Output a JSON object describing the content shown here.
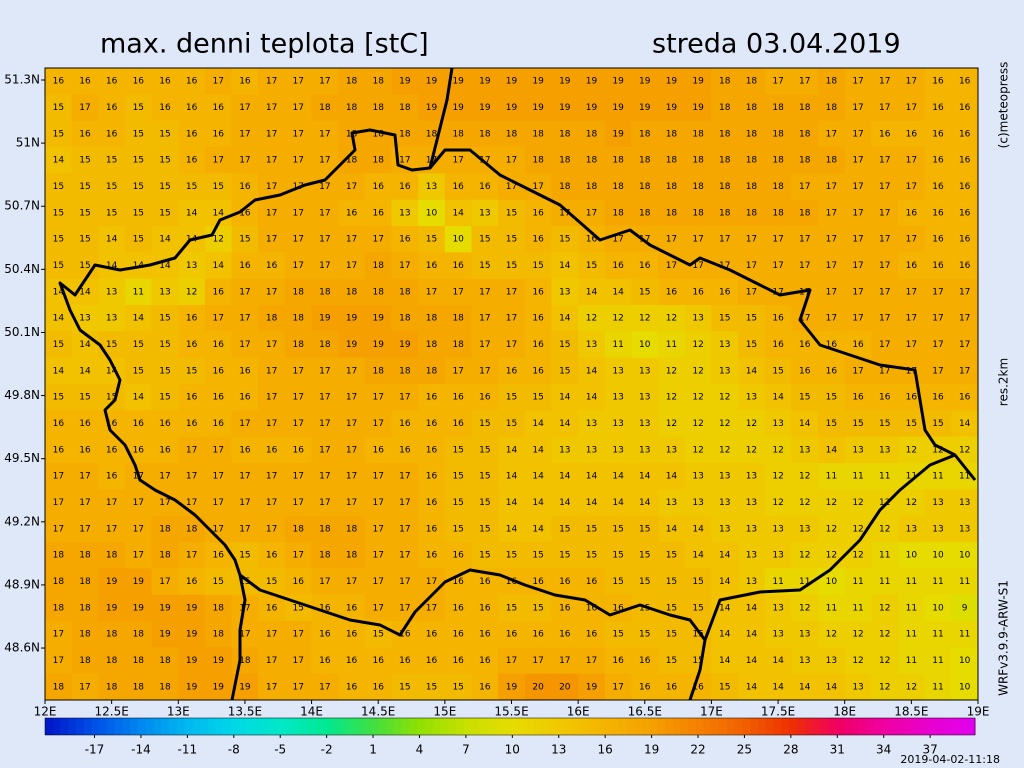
{
  "header": {
    "title": "max. denni teplota [stC]",
    "date": "streda 03.04.2019"
  },
  "chart_data": {
    "type": "grid-map",
    "xlim": [
      12,
      19
    ],
    "ylim": [
      48.353,
      51.357
    ],
    "xticks": [
      {
        "value": 12,
        "label": "12E"
      },
      {
        "value": 12.5,
        "label": "12.5E"
      },
      {
        "value": 13,
        "label": "13E"
      },
      {
        "value": 13.5,
        "label": "13.5E"
      },
      {
        "value": 14,
        "label": "14E"
      },
      {
        "value": 14.5,
        "label": "14.5E"
      },
      {
        "value": 15,
        "label": "15E"
      },
      {
        "value": 15.5,
        "label": "15.5E"
      },
      {
        "value": 16,
        "label": "16E"
      },
      {
        "value": 16.5,
        "label": "16.5E"
      },
      {
        "value": 17,
        "label": "17E"
      },
      {
        "value": 17.5,
        "label": "17.5E"
      },
      {
        "value": 18,
        "label": "18E"
      },
      {
        "value": 18.5,
        "label": "18.5E"
      },
      {
        "value": 19,
        "label": "19E"
      }
    ],
    "yticks": [
      {
        "value": 51.3,
        "label": "51.3N"
      },
      {
        "value": 51,
        "label": "51N"
      },
      {
        "value": 50.7,
        "label": "50.7N"
      },
      {
        "value": 50.4,
        "label": "50.4N"
      },
      {
        "value": 50.1,
        "label": "50.1N"
      },
      {
        "value": 49.8,
        "label": "49.8N"
      },
      {
        "value": 49.5,
        "label": "49.5N"
      },
      {
        "value": 49.2,
        "label": "49.2N"
      },
      {
        "value": 48.9,
        "label": "48.9N"
      },
      {
        "value": 48.6,
        "label": "48.6N"
      }
    ],
    "values": [
      [
        16,
        16,
        16,
        16,
        16,
        16,
        17,
        16,
        17,
        17,
        17,
        18,
        18,
        19,
        19,
        19,
        19,
        19,
        19,
        19,
        19,
        19,
        19,
        19,
        19,
        18,
        18,
        17,
        17,
        18,
        17,
        17,
        17,
        16,
        16
      ],
      [
        15,
        17,
        16,
        15,
        16,
        16,
        16,
        17,
        17,
        17,
        18,
        18,
        18,
        18,
        19,
        19,
        19,
        19,
        19,
        19,
        19,
        19,
        19,
        19,
        19,
        18,
        18,
        18,
        18,
        18,
        17,
        17,
        17,
        16,
        16
      ],
      [
        15,
        16,
        16,
        15,
        15,
        16,
        16,
        17,
        17,
        17,
        17,
        18,
        18,
        18,
        18,
        18,
        18,
        18,
        18,
        18,
        18,
        19,
        18,
        18,
        18,
        18,
        18,
        18,
        18,
        17,
        17,
        16,
        16,
        16,
        16
      ],
      [
        14,
        15,
        15,
        15,
        15,
        16,
        17,
        17,
        17,
        17,
        17,
        18,
        18,
        17,
        17,
        17,
        17,
        17,
        18,
        18,
        18,
        18,
        18,
        18,
        18,
        18,
        18,
        18,
        18,
        18,
        17,
        17,
        17,
        16,
        16
      ],
      [
        15,
        15,
        15,
        15,
        15,
        15,
        15,
        16,
        17,
        17,
        17,
        17,
        16,
        16,
        13,
        16,
        16,
        17,
        17,
        18,
        18,
        18,
        18,
        18,
        18,
        18,
        18,
        18,
        17,
        17,
        17,
        17,
        17,
        16,
        16
      ],
      [
        15,
        15,
        15,
        15,
        15,
        14,
        14,
        16,
        17,
        17,
        17,
        16,
        16,
        13,
        10,
        14,
        13,
        15,
        16,
        17,
        17,
        18,
        18,
        18,
        18,
        18,
        18,
        18,
        18,
        17,
        17,
        17,
        16,
        16,
        16
      ],
      [
        15,
        15,
        14,
        15,
        14,
        14,
        12,
        15,
        17,
        17,
        17,
        17,
        17,
        16,
        15,
        10,
        15,
        15,
        16,
        15,
        16,
        17,
        17,
        17,
        17,
        17,
        17,
        17,
        17,
        17,
        17,
        17,
        17,
        16,
        16
      ],
      [
        15,
        15,
        14,
        14,
        14,
        13,
        14,
        16,
        16,
        17,
        17,
        17,
        18,
        17,
        16,
        16,
        15,
        15,
        15,
        14,
        15,
        16,
        16,
        17,
        17,
        17,
        17,
        17,
        17,
        17,
        17,
        17,
        16,
        16,
        16
      ],
      [
        14,
        14,
        13,
        11,
        13,
        12,
        16,
        17,
        17,
        18,
        18,
        18,
        18,
        18,
        17,
        17,
        17,
        17,
        16,
        13,
        14,
        14,
        15,
        16,
        16,
        16,
        17,
        17,
        17,
        17,
        17,
        17,
        17,
        17,
        17
      ],
      [
        14,
        13,
        13,
        14,
        15,
        16,
        17,
        17,
        18,
        18,
        19,
        19,
        19,
        18,
        18,
        18,
        17,
        17,
        16,
        14,
        12,
        12,
        12,
        12,
        13,
        15,
        15,
        16,
        17,
        17,
        17,
        17,
        17,
        17,
        17
      ],
      [
        15,
        14,
        15,
        15,
        15,
        16,
        16,
        17,
        17,
        18,
        18,
        19,
        19,
        19,
        18,
        18,
        17,
        17,
        16,
        15,
        13,
        11,
        10,
        11,
        12,
        13,
        15,
        16,
        16,
        16,
        16,
        17,
        17,
        17,
        17
      ],
      [
        14,
        14,
        14,
        15,
        15,
        15,
        16,
        16,
        17,
        17,
        17,
        17,
        18,
        18,
        18,
        17,
        17,
        16,
        16,
        15,
        14,
        13,
        13,
        12,
        12,
        13,
        14,
        15,
        16,
        16,
        17,
        17,
        17,
        17,
        17
      ],
      [
        15,
        15,
        15,
        14,
        15,
        16,
        16,
        16,
        17,
        17,
        17,
        17,
        17,
        17,
        16,
        16,
        16,
        15,
        15,
        14,
        14,
        13,
        13,
        12,
        12,
        12,
        13,
        14,
        15,
        15,
        16,
        16,
        16,
        16,
        16
      ],
      [
        16,
        16,
        16,
        16,
        16,
        16,
        16,
        17,
        17,
        17,
        17,
        17,
        17,
        16,
        16,
        16,
        15,
        15,
        14,
        14,
        13,
        13,
        13,
        12,
        12,
        12,
        12,
        13,
        14,
        15,
        15,
        15,
        15,
        15,
        14
      ],
      [
        16,
        16,
        16,
        16,
        16,
        17,
        17,
        16,
        16,
        16,
        17,
        17,
        16,
        16,
        16,
        15,
        15,
        14,
        14,
        13,
        13,
        13,
        13,
        13,
        12,
        12,
        12,
        12,
        13,
        14,
        13,
        13,
        12,
        12,
        12
      ],
      [
        17,
        17,
        16,
        17,
        17,
        17,
        17,
        17,
        17,
        17,
        17,
        17,
        17,
        17,
        16,
        15,
        15,
        14,
        14,
        14,
        14,
        14,
        14,
        14,
        13,
        13,
        13,
        12,
        12,
        11,
        11,
        11,
        11,
        11,
        11
      ],
      [
        17,
        17,
        17,
        17,
        17,
        17,
        17,
        17,
        17,
        17,
        17,
        17,
        17,
        17,
        16,
        15,
        15,
        14,
        14,
        14,
        14,
        14,
        14,
        13,
        13,
        13,
        13,
        12,
        12,
        12,
        12,
        12,
        12,
        13,
        13
      ],
      [
        17,
        17,
        17,
        17,
        18,
        18,
        17,
        17,
        17,
        18,
        18,
        18,
        17,
        17,
        16,
        15,
        15,
        14,
        14,
        15,
        15,
        15,
        15,
        14,
        14,
        13,
        13,
        13,
        13,
        12,
        12,
        12,
        13,
        13,
        13
      ],
      [
        18,
        18,
        18,
        17,
        18,
        17,
        16,
        15,
        16,
        17,
        18,
        18,
        17,
        17,
        16,
        16,
        15,
        15,
        15,
        15,
        15,
        15,
        15,
        15,
        14,
        14,
        13,
        13,
        12,
        12,
        12,
        11,
        10,
        10,
        10
      ],
      [
        18,
        18,
        19,
        19,
        17,
        16,
        15,
        15,
        15,
        16,
        17,
        17,
        17,
        17,
        17,
        16,
        16,
        16,
        16,
        16,
        16,
        15,
        15,
        15,
        15,
        14,
        13,
        11,
        11,
        10,
        11,
        11,
        11,
        11,
        11
      ],
      [
        18,
        18,
        19,
        19,
        19,
        19,
        18,
        17,
        16,
        15,
        16,
        16,
        17,
        17,
        17,
        16,
        16,
        15,
        15,
        16,
        16,
        16,
        15,
        15,
        15,
        14,
        14,
        13,
        12,
        11,
        11,
        12,
        11,
        10,
        9
      ],
      [
        17,
        18,
        18,
        18,
        19,
        19,
        18,
        17,
        17,
        17,
        16,
        16,
        15,
        16,
        16,
        16,
        16,
        16,
        16,
        16,
        16,
        15,
        15,
        15,
        15,
        14,
        14,
        13,
        13,
        12,
        12,
        12,
        11,
        11,
        11
      ],
      [
        17,
        18,
        18,
        18,
        18,
        19,
        19,
        18,
        17,
        17,
        16,
        16,
        16,
        16,
        16,
        16,
        16,
        17,
        17,
        17,
        17,
        16,
        16,
        15,
        15,
        14,
        14,
        14,
        13,
        13,
        12,
        12,
        11,
        11,
        10
      ],
      [
        18,
        17,
        18,
        18,
        18,
        19,
        19,
        19,
        17,
        17,
        17,
        16,
        16,
        15,
        15,
        15,
        16,
        19,
        20,
        20,
        19,
        17,
        16,
        16,
        16,
        15,
        14,
        14,
        14,
        14,
        13,
        12,
        12,
        11,
        10
      ]
    ],
    "colorscale": [
      {
        "value": -20,
        "color": "#0018c8"
      },
      {
        "value": -17,
        "color": "#0050e8"
      },
      {
        "value": -14,
        "color": "#0088f0"
      },
      {
        "value": -11,
        "color": "#00b8f0"
      },
      {
        "value": -8,
        "color": "#00d8e8"
      },
      {
        "value": -5,
        "color": "#00e8c8"
      },
      {
        "value": -2,
        "color": "#00e890"
      },
      {
        "value": 1,
        "color": "#40e040"
      },
      {
        "value": 4,
        "color": "#90e000"
      },
      {
        "value": 7,
        "color": "#c8e000"
      },
      {
        "value": 10,
        "color": "#e6dc00"
      },
      {
        "value": 13,
        "color": "#f0c800"
      },
      {
        "value": 16,
        "color": "#f5b400"
      },
      {
        "value": 19,
        "color": "#f5a000"
      },
      {
        "value": 22,
        "color": "#f58000"
      },
      {
        "value": 25,
        "color": "#f06000"
      },
      {
        "value": 28,
        "color": "#f03000"
      },
      {
        "value": 31,
        "color": "#f00060"
      },
      {
        "value": 34,
        "color": "#f000a0"
      },
      {
        "value": 37,
        "color": "#e800d0"
      },
      {
        "value": 40,
        "color": "#e000f0"
      }
    ],
    "colorbar": {
      "lim": [
        -20.2,
        39.9
      ],
      "ticks": [
        -17,
        -14,
        -11,
        -8,
        -5,
        -2,
        1,
        4,
        7,
        10,
        13,
        16,
        19,
        22,
        25,
        28,
        31,
        34,
        37
      ]
    }
  },
  "credits": {
    "copyright": "(c)meteopress",
    "resolution": "res.2km",
    "model": "WRFv3.9.9-ARW-S1",
    "timestamp": "2019-04-02-11:18"
  }
}
